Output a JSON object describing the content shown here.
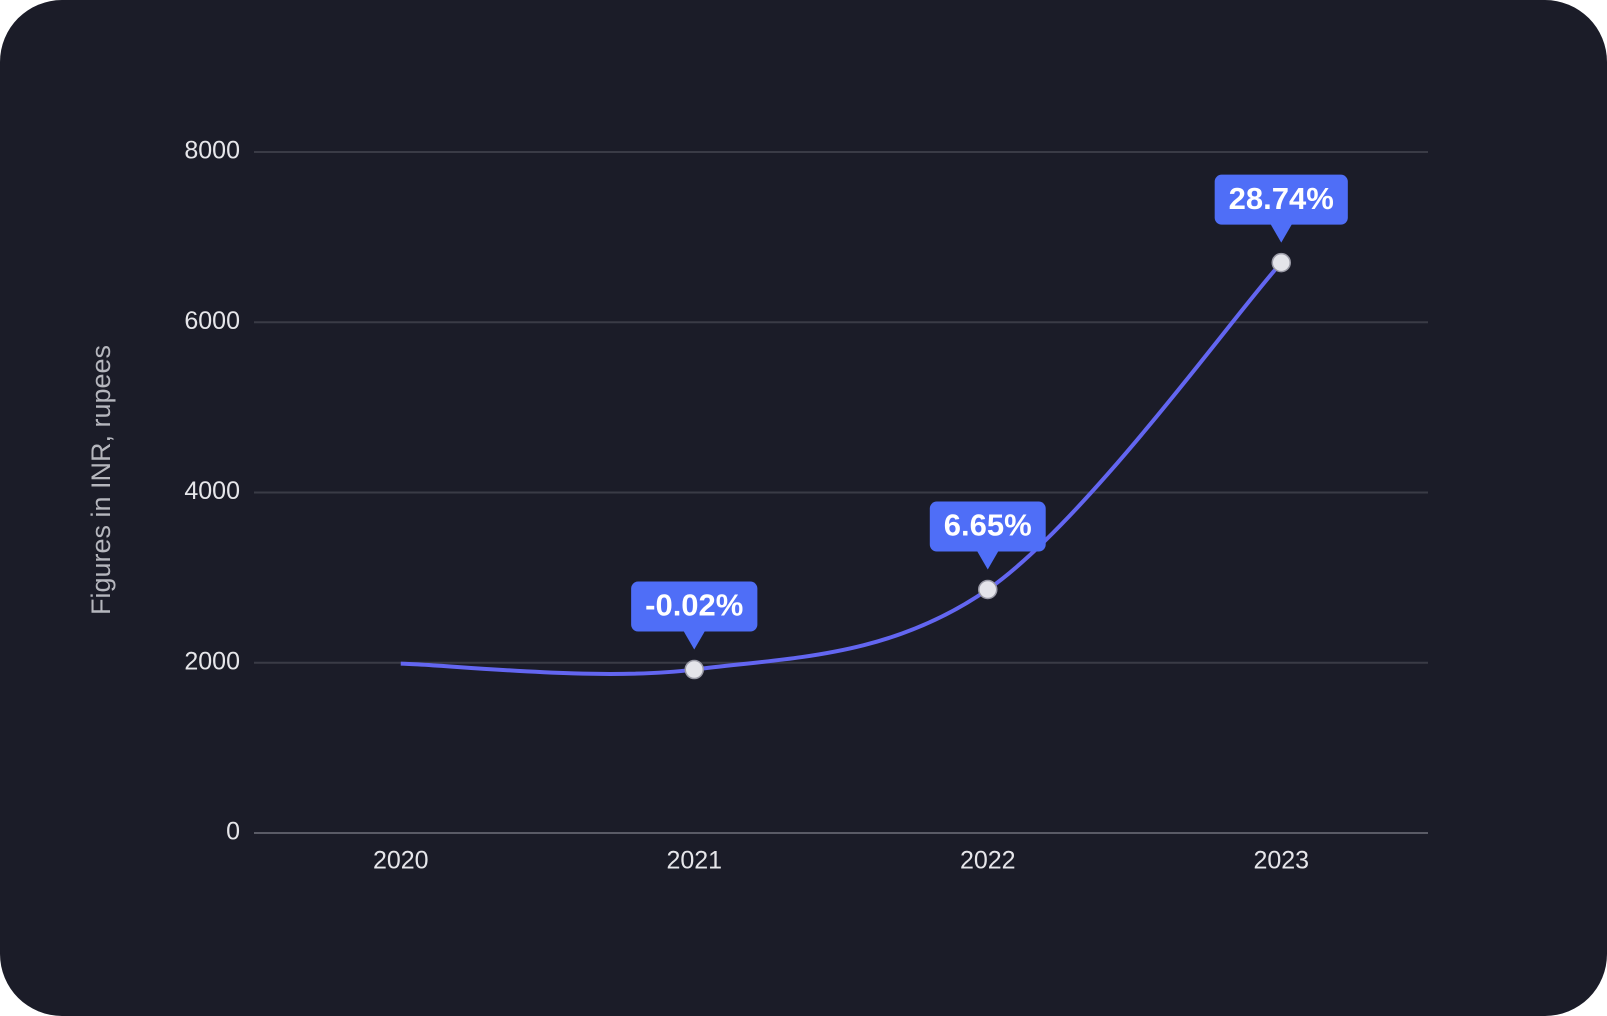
{
  "chart_data": {
    "type": "line",
    "y_label": "Figures in INR, rupees",
    "categories": [
      "2020",
      "2021",
      "2022",
      "2023"
    ],
    "values": [
      1990,
      1920,
      2860,
      6700
    ],
    "annotations": [
      null,
      "-0.02%",
      "6.65%",
      "28.74%"
    ],
    "color": "#6366f1",
    "ylim": [
      0,
      8000
    ],
    "yticks": [
      0,
      2000,
      4000,
      6000,
      8000
    ],
    "grid": true
  }
}
